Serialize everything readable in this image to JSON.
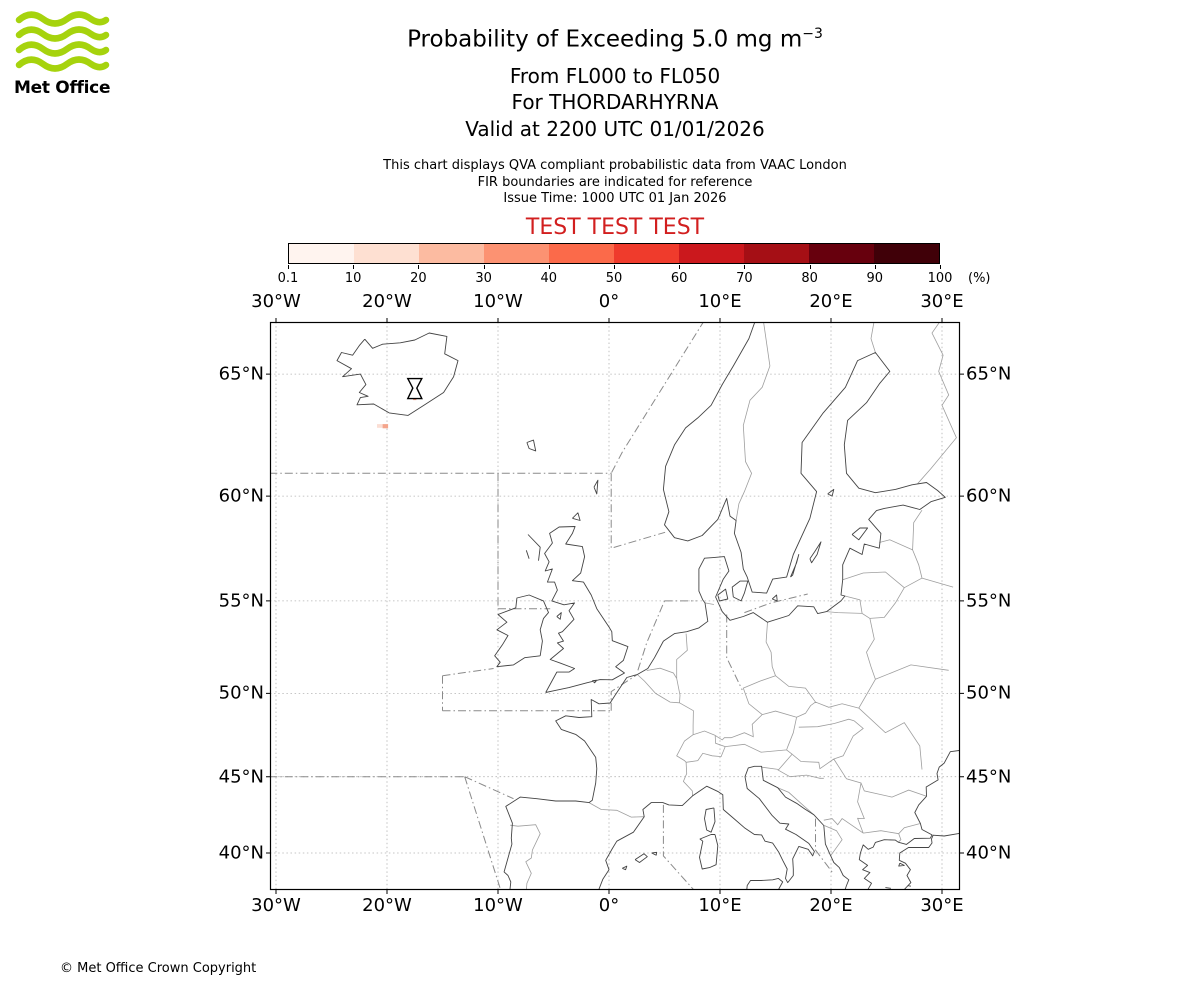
{
  "logo": {
    "brand": "Met Office",
    "accent": "#a6d30d"
  },
  "header": {
    "title_main": "Probability of Exceeding 5.0 mg m",
    "title_exp": "−3",
    "line2": "From FL000 to FL050",
    "line3": "For THORDARHYRNA",
    "line4": "Valid at 2200 UTC 01/01/2026"
  },
  "notes": {
    "line1": "This chart displays QVA compliant probabilistic data from VAAC London",
    "line2": "FIR boundaries are indicated for reference",
    "line3": "Issue Time: 1000 UTC 01 Jan 2026"
  },
  "test_banner": {
    "text": "TEST TEST TEST",
    "color": "#d21f1f"
  },
  "colorbar": {
    "ticks": [
      "0.1",
      "10",
      "20",
      "30",
      "40",
      "50",
      "60",
      "70",
      "80",
      "90",
      "100"
    ],
    "unit": "(%)",
    "segment_colors": [
      "#fff4ef",
      "#fee0d2",
      "#fcbba1",
      "#fc9272",
      "#fb6a4a",
      "#ef3b2c",
      "#cb181d",
      "#a50f15",
      "#67000d",
      "#400008"
    ]
  },
  "map": {
    "x_tick_labels": [
      "30°W",
      "20°W",
      "10°W",
      "0°",
      "10°E",
      "20°E",
      "30°E"
    ],
    "y_tick_labels": [
      "65°N",
      "60°N",
      "55°N",
      "50°N",
      "45°N",
      "40°N"
    ],
    "volcano": {
      "name": "THORDARHYRNA",
      "lon": -17.5,
      "lat": 64.45
    },
    "hazard_cells": [
      {
        "lon_min": -17.65,
        "lon_max": -17.35,
        "lat_min": 64.0,
        "lat_max": 64.25,
        "color": "#f4997f"
      },
      {
        "lon_min": -20.9,
        "lon_max": -20.4,
        "lat_min": 62.9,
        "lat_max": 63.05,
        "color": "#fbded4"
      },
      {
        "lon_min": -20.4,
        "lon_max": -19.9,
        "lat_min": 62.88,
        "lat_max": 63.05,
        "color": "#f4a58c"
      }
    ]
  },
  "footer": {
    "copyright": "© Met Office Crown Copyright"
  }
}
